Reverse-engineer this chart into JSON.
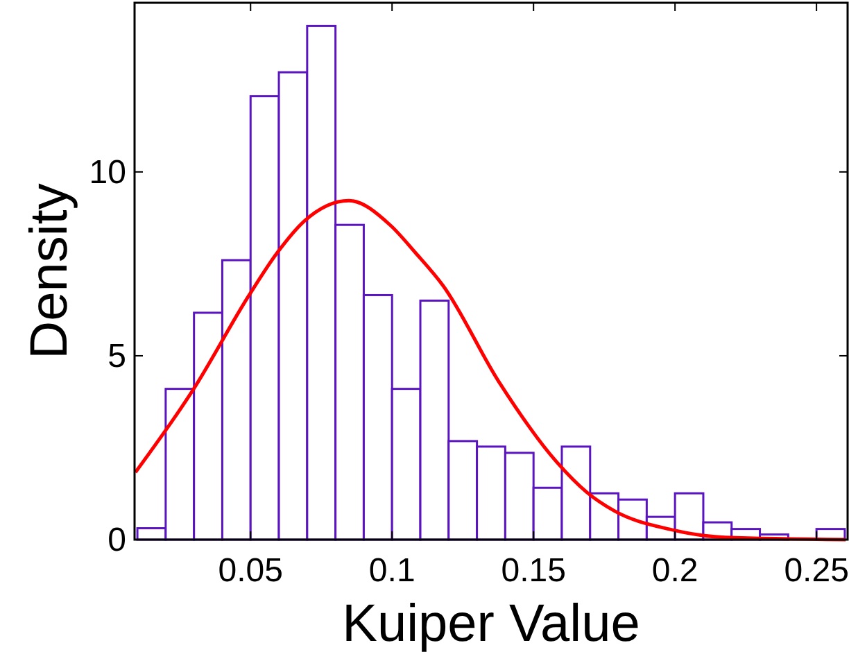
{
  "chart_data": {
    "type": "histogram",
    "xlabel": "Kuiper Value",
    "ylabel": "Density",
    "bins": [
      0.01,
      0.02,
      0.03,
      0.04,
      0.05,
      0.06,
      0.07,
      0.08,
      0.09,
      0.1,
      0.11,
      0.12,
      0.13,
      0.14,
      0.15,
      0.16,
      0.17,
      0.18,
      0.19,
      0.2,
      0.21,
      0.22,
      0.23,
      0.24,
      0.25,
      0.26
    ],
    "xlim": [
      0.009,
      0.261
    ],
    "xticks": [
      0.05,
      0.1,
      0.15,
      0.2,
      0.25
    ],
    "ylim": [
      0,
      14.6
    ],
    "yticks": [
      0,
      5,
      10
    ],
    "grid": false,
    "series": [
      {
        "color": "#5a14c0",
        "values": [
          0.31,
          4.1,
          6.17,
          7.6,
          12.06,
          12.71,
          13.97,
          8.56,
          6.65,
          4.1,
          6.5,
          2.68,
          2.53,
          2.36,
          1.41,
          2.53,
          1.26,
          1.09,
          0.62,
          1.26,
          0.47,
          0.29,
          0.14,
          0,
          0.29
        ]
      },
      {
        "type": "line",
        "color": "#ff0000",
        "x": [
          0.0093,
          0.0299,
          0.0495,
          0.0593,
          0.0691,
          0.0847,
          0.0994,
          0.1083,
          0.1181,
          0.1377,
          0.1582,
          0.1688,
          0.1786,
          0.1982,
          0.2178,
          0.2603
        ],
        "values": [
          1.83,
          4.1,
          6.65,
          7.79,
          8.67,
          9.22,
          8.55,
          7.8,
          6.9,
          4.3,
          2.11,
          1.29,
          0.78,
          0.28,
          0.06,
          0
        ]
      }
    ]
  }
}
